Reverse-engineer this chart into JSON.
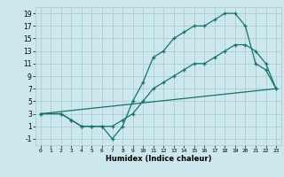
{
  "xlabel": "Humidex (Indice chaleur)",
  "bg_color": "#cce8ec",
  "grid_color": "#aacdd4",
  "line_color": "#1a7070",
  "xlim": [
    -0.5,
    23.5
  ],
  "ylim": [
    -2,
    20
  ],
  "xticks": [
    0,
    1,
    2,
    3,
    4,
    5,
    6,
    7,
    8,
    9,
    10,
    11,
    12,
    13,
    14,
    15,
    16,
    17,
    18,
    19,
    20,
    21,
    22,
    23
  ],
  "yticks": [
    -1,
    1,
    3,
    5,
    7,
    9,
    11,
    13,
    15,
    17,
    19
  ],
  "line1_x": [
    0,
    2,
    3,
    4,
    5,
    6,
    7,
    8,
    9,
    10,
    11,
    12,
    13,
    14,
    15,
    16,
    17,
    18,
    19,
    20,
    21,
    22,
    23
  ],
  "line1_y": [
    3,
    3,
    2,
    1,
    1,
    1,
    -1,
    1,
    5,
    8,
    12,
    13,
    15,
    16,
    17,
    17,
    18,
    19,
    19,
    17,
    11,
    10,
    7
  ],
  "line2_x": [
    0,
    2,
    3,
    4,
    5,
    6,
    7,
    8,
    9,
    10,
    11,
    12,
    13,
    14,
    15,
    16,
    17,
    18,
    19,
    20,
    21,
    22,
    23
  ],
  "line2_y": [
    3,
    3,
    2,
    1,
    1,
    1,
    1,
    2,
    3,
    5,
    7,
    8,
    9,
    10,
    11,
    11,
    12,
    13,
    14,
    14,
    13,
    11,
    7
  ],
  "line3_x": [
    0,
    23
  ],
  "line3_y": [
    3,
    7
  ]
}
